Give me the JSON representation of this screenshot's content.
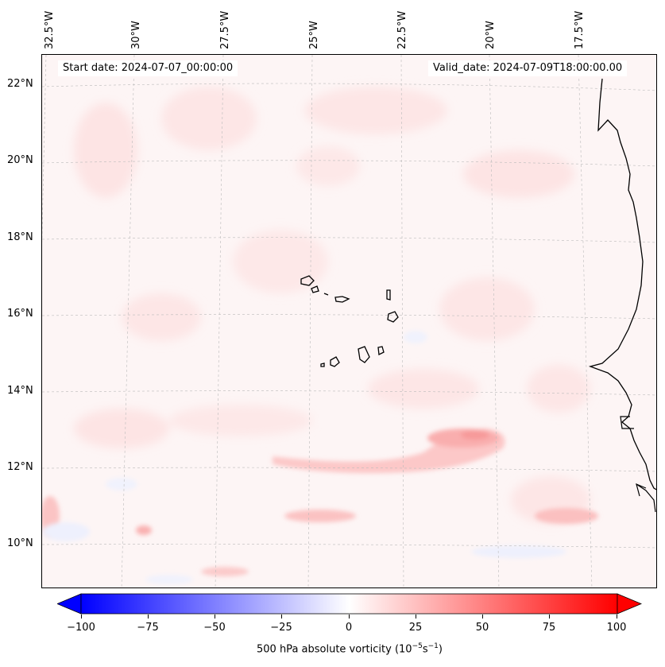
{
  "map": {
    "start_label": "Start date: 2024-07-07_00:00:00",
    "valid_label": "Valid_date: 2024-07-09T18:00:00.00",
    "lon_labels": [
      "32.5°W",
      "30°W",
      "27.5°W",
      "25°W",
      "22.5°W",
      "20°W",
      "17.5°W"
    ],
    "lat_labels": [
      "22°N",
      "20°N",
      "18°N",
      "16°N",
      "14°N",
      "12°N",
      "10°N"
    ],
    "islands": "Cape Verde",
    "coast": "West Africa"
  },
  "colorbar": {
    "title": "500 hPa absolute vorticity (10",
    "title_exp1": "−5",
    "title_mid": "s",
    "title_exp2": "−1",
    "title_end": ")",
    "ticks": [
      "−100",
      "−75",
      "−50",
      "−25",
      "0",
      "25",
      "50",
      "75",
      "100"
    ],
    "min": -100,
    "max": 100,
    "low_color": "#0000ff",
    "mid_color": "#ffffff",
    "high_color": "#ff0000"
  }
}
